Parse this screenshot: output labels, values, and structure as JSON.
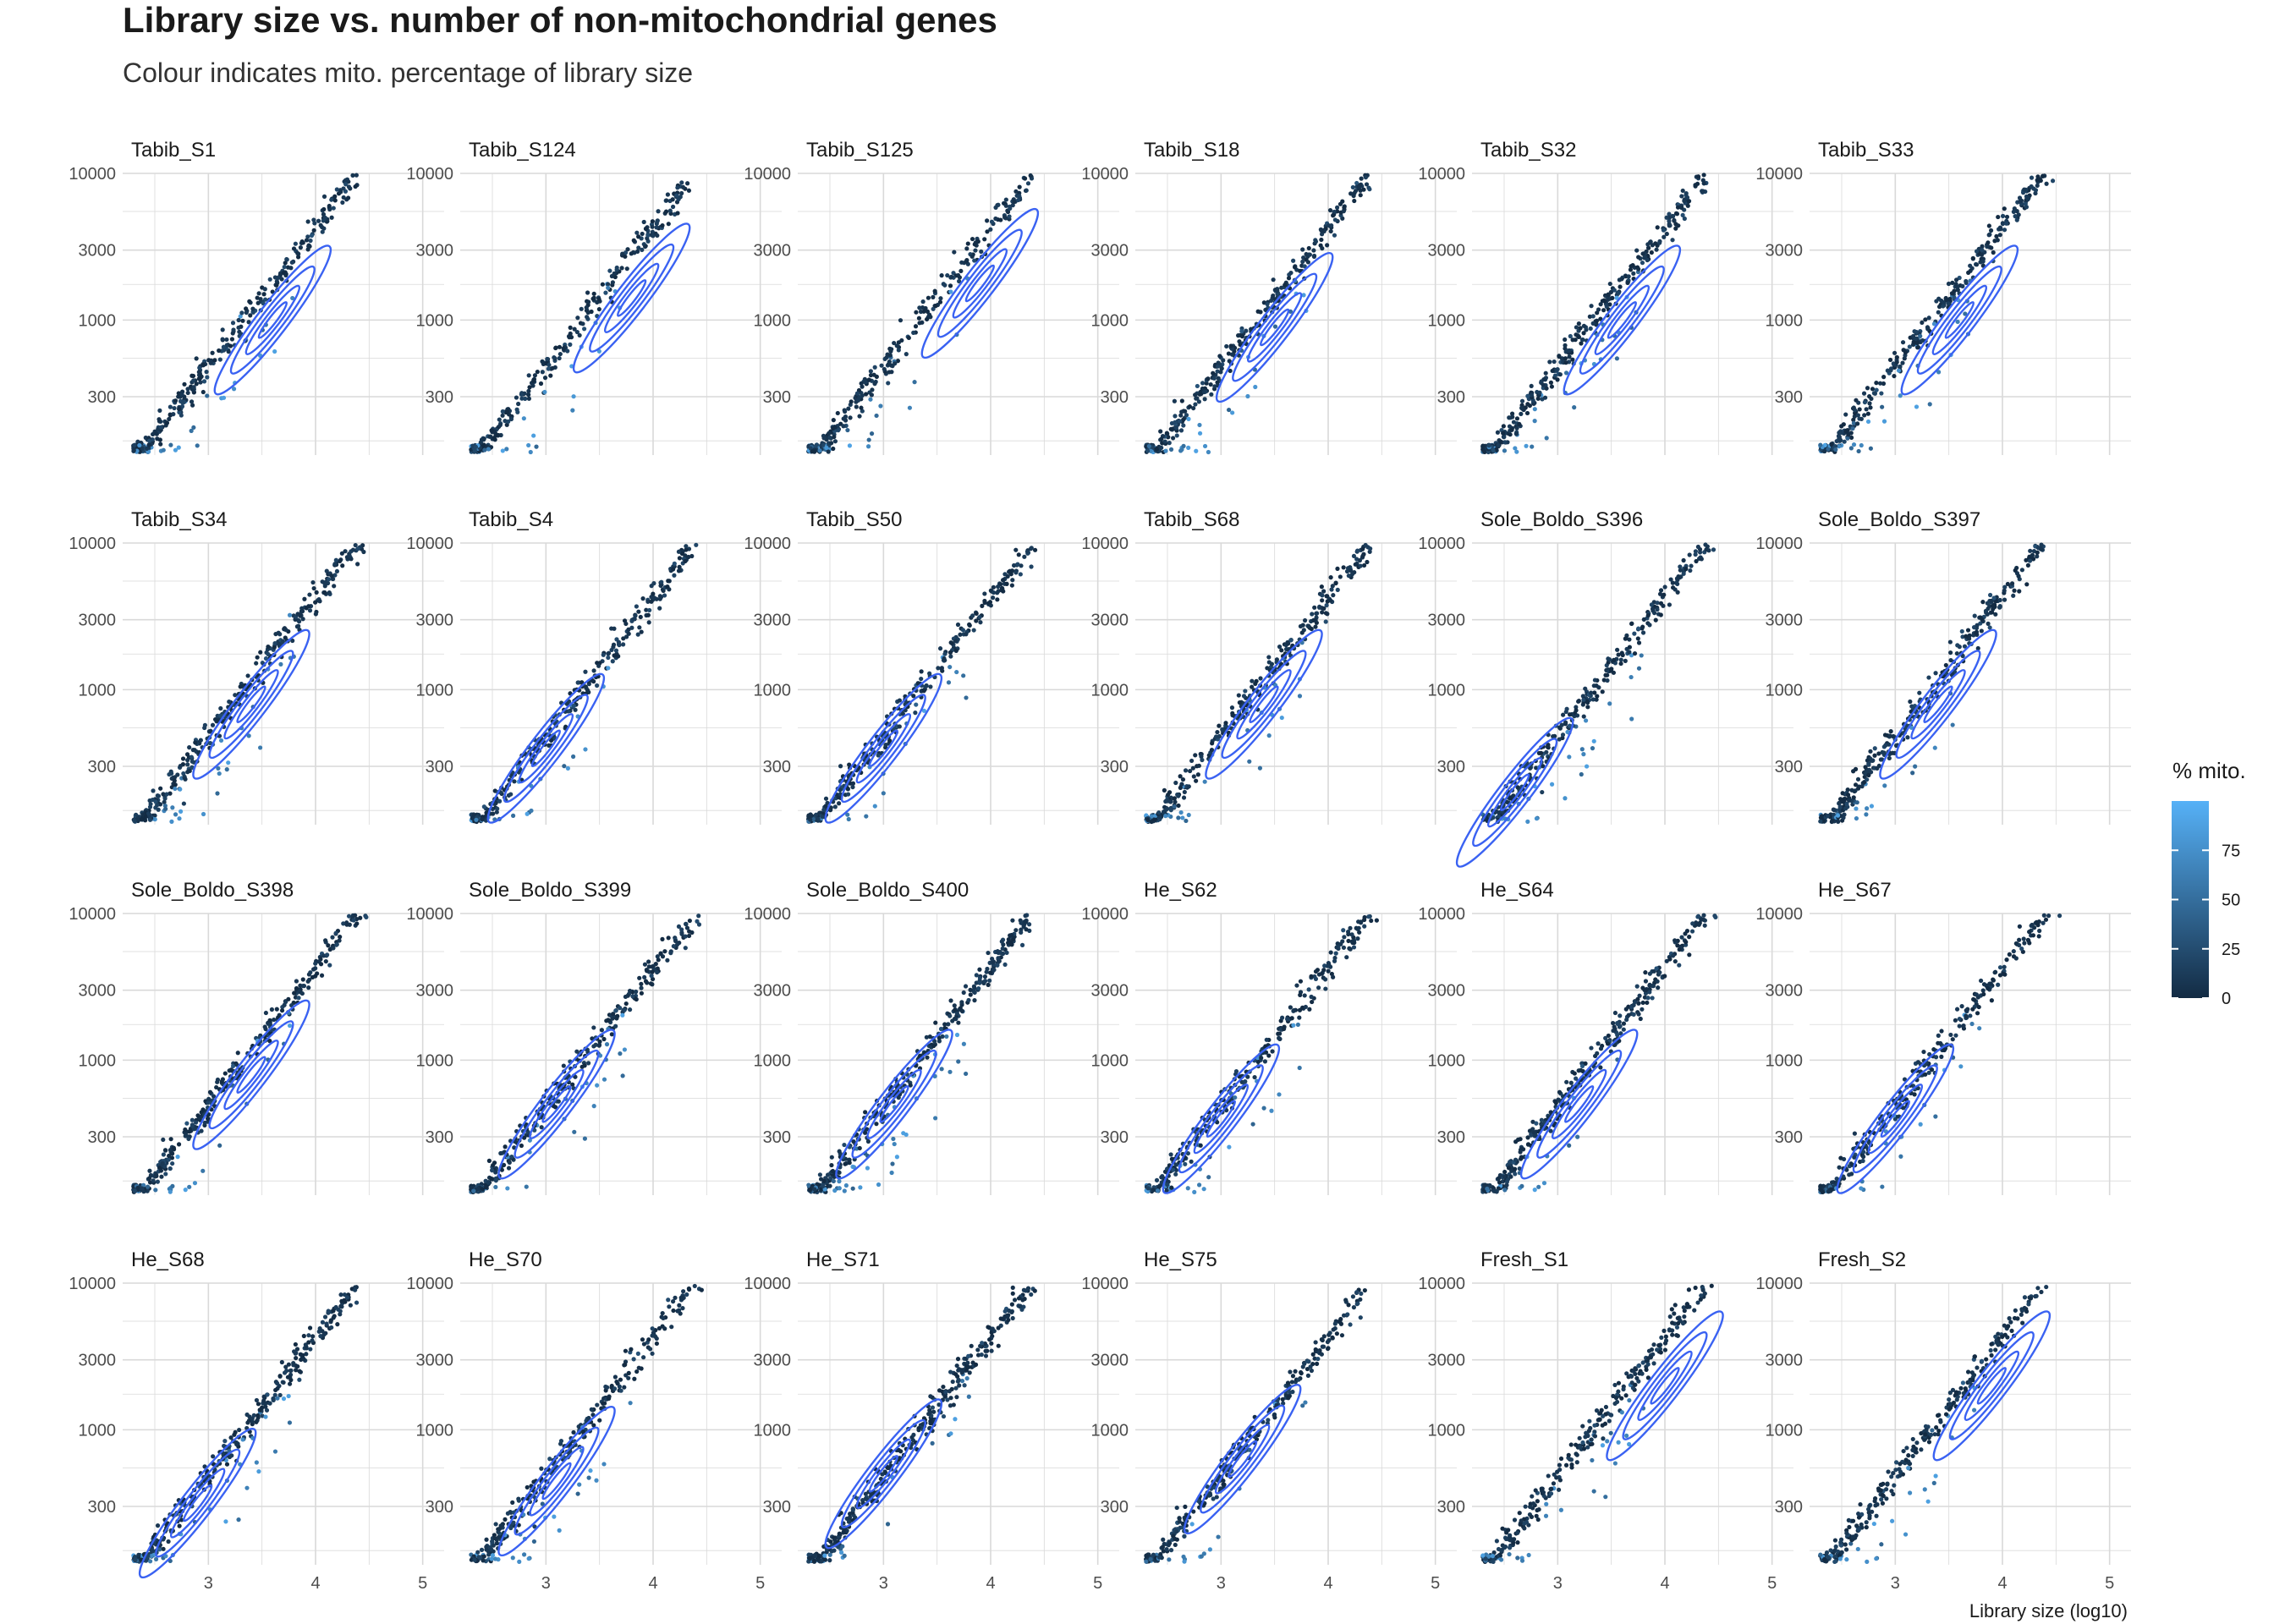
{
  "chart_data": {
    "type": "scatter",
    "title": "Library size vs. number of non-mitochondrial genes",
    "subtitle": "Colour indicates mito. percentage of library size",
    "xlabel": "Library size (log10)",
    "ylabel": "",
    "x_scale": "log10 library size",
    "y_scale": "log10",
    "xlim": [
      2.2,
      5.2
    ],
    "ylim": [
      120,
      10000
    ],
    "x_ticks": [
      3,
      4,
      5
    ],
    "y_ticks": [
      300,
      1000,
      3000,
      10000
    ],
    "grid": true,
    "overlay": "2D density contours",
    "color_scale": {
      "title": "% mito.",
      "low": "#132B43",
      "high": "#56B1F7",
      "ticks": [
        0,
        25,
        50,
        75
      ],
      "range": [
        0,
        100
      ]
    },
    "legend_position": "right",
    "colors": {
      "contour": "#3a62f2"
    },
    "panels": [
      {
        "name": "Tabib_S1",
        "x_range": [
          2.3,
          4.7
        ],
        "contour_center": [
          3.6,
          3.0
        ]
      },
      {
        "name": "Tabib_S124",
        "x_range": [
          2.3,
          5.2
        ],
        "contour_center": [
          3.8,
          3.15
        ]
      },
      {
        "name": "Tabib_S125",
        "x_range": [
          2.3,
          5.1
        ],
        "contour_center": [
          3.9,
          3.25
        ]
      },
      {
        "name": "Tabib_S18",
        "x_range": [
          2.3,
          4.7
        ],
        "contour_center": [
          3.5,
          2.95
        ]
      },
      {
        "name": "Tabib_S32",
        "x_range": [
          2.3,
          4.6
        ],
        "contour_center": [
          3.6,
          3.0
        ]
      },
      {
        "name": "Tabib_S33",
        "x_range": [
          2.3,
          4.8
        ],
        "contour_center": [
          3.6,
          3.0
        ]
      },
      {
        "name": "Tabib_S34",
        "x_range": [
          2.3,
          4.6
        ],
        "contour_center": [
          3.4,
          2.9
        ]
      },
      {
        "name": "Tabib_S4",
        "x_range": [
          2.3,
          5.0
        ],
        "contour_center": [
          3.0,
          2.6
        ]
      },
      {
        "name": "Tabib_S50",
        "x_range": [
          2.3,
          5.0
        ],
        "contour_center": [
          3.0,
          2.6
        ]
      },
      {
        "name": "Tabib_S68",
        "x_range": [
          2.3,
          4.9
        ],
        "contour_center": [
          3.4,
          2.9
        ]
      },
      {
        "name": "Sole_Boldo_S396",
        "x_range": [
          2.3,
          5.0
        ],
        "contour_center": [
          2.6,
          2.3
        ]
      },
      {
        "name": "Sole_Boldo_S397",
        "x_range": [
          2.3,
          4.8
        ],
        "contour_center": [
          3.4,
          2.9
        ]
      },
      {
        "name": "Sole_Boldo_S398",
        "x_range": [
          2.3,
          4.8
        ],
        "contour_center": [
          3.4,
          2.9
        ]
      },
      {
        "name": "Sole_Boldo_S399",
        "x_range": [
          2.3,
          4.9
        ],
        "contour_center": [
          3.1,
          2.7
        ]
      },
      {
        "name": "Sole_Boldo_S400",
        "x_range": [
          2.3,
          4.6
        ],
        "contour_center": [
          3.1,
          2.7
        ]
      },
      {
        "name": "He_S62",
        "x_range": [
          2.3,
          5.2
        ],
        "contour_center": [
          3.0,
          2.6
        ]
      },
      {
        "name": "He_S64",
        "x_range": [
          2.3,
          4.8
        ],
        "contour_center": [
          3.2,
          2.7
        ]
      },
      {
        "name": "He_S67",
        "x_range": [
          2.3,
          5.2
        ],
        "contour_center": [
          3.0,
          2.6
        ]
      },
      {
        "name": "He_S68",
        "x_range": [
          2.3,
          4.7
        ],
        "contour_center": [
          2.9,
          2.5
        ]
      },
      {
        "name": "He_S70",
        "x_range": [
          2.3,
          5.2
        ],
        "contour_center": [
          3.1,
          2.65
        ]
      },
      {
        "name": "He_S71",
        "x_range": [
          2.3,
          4.6
        ],
        "contour_center": [
          3.0,
          2.7
        ]
      },
      {
        "name": "He_S75",
        "x_range": [
          2.3,
          4.9
        ],
        "contour_center": [
          3.2,
          2.8
        ]
      },
      {
        "name": "Fresh_S1",
        "x_range": [
          2.3,
          5.1
        ],
        "contour_center": [
          4.0,
          3.3
        ]
      },
      {
        "name": "Fresh_S2",
        "x_range": [
          2.3,
          5.1
        ],
        "contour_center": [
          3.9,
          3.3
        ]
      }
    ]
  }
}
